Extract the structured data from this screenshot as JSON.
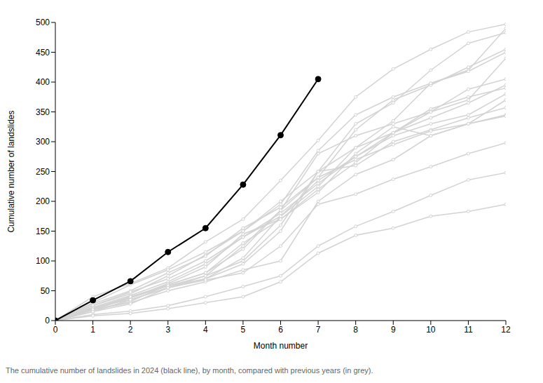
{
  "chart_data": {
    "type": "line",
    "caption": "The cumulative number of landslides in 2024 (black line), by month, compared with previous years (in grey).",
    "x_label": "Month number",
    "y_label": "Cumulative number of landslides",
    "x": [
      0,
      1,
      2,
      3,
      4,
      5,
      6,
      7,
      8,
      9,
      10,
      11,
      12
    ],
    "xlim": [
      0,
      12
    ],
    "xticks": [
      0,
      1,
      2,
      3,
      4,
      5,
      6,
      7,
      8,
      9,
      10,
      11,
      12
    ],
    "ylim": [
      0,
      500
    ],
    "yticks": [
      0,
      50,
      100,
      150,
      200,
      250,
      300,
      350,
      400,
      450,
      500
    ],
    "grid": false,
    "series": [
      {
        "color": "#d3d3d3",
        "marker": "hollow_circle",
        "values": [
          0,
          40,
          62,
          88,
          132,
          170,
          235,
          302,
          375,
          422,
          455,
          484,
          497
        ]
      },
      {
        "color": "#d3d3d3",
        "marker": "hollow_circle",
        "values": [
          0,
          30,
          60,
          85,
          115,
          150,
          195,
          285,
          345,
          375,
          398,
          420,
          490
        ]
      },
      {
        "color": "#d3d3d3",
        "marker": "hollow_circle",
        "values": [
          0,
          25,
          45,
          75,
          110,
          150,
          200,
          250,
          330,
          365,
          420,
          465,
          483
        ]
      },
      {
        "color": "#d3d3d3",
        "marker": "hollow_circle",
        "values": [
          0,
          28,
          50,
          80,
          108,
          155,
          190,
          240,
          320,
          370,
          395,
          425,
          455
        ]
      },
      {
        "color": "#d3d3d3",
        "marker": "hollow_circle",
        "values": [
          0,
          22,
          42,
          65,
          95,
          140,
          175,
          225,
          290,
          335,
          398,
          418,
          450
        ]
      },
      {
        "color": "#d3d3d3",
        "marker": "hollow_circle",
        "values": [
          0,
          20,
          40,
          60,
          80,
          120,
          185,
          280,
          310,
          330,
          350,
          370,
          440
        ]
      },
      {
        "color": "#d3d3d3",
        "marker": "hollow_circle",
        "values": [
          0,
          25,
          48,
          70,
          100,
          140,
          180,
          230,
          275,
          315,
          350,
          388,
          405
        ]
      },
      {
        "color": "#d3d3d3",
        "marker": "hollow_circle",
        "values": [
          0,
          18,
          38,
          62,
          90,
          145,
          170,
          220,
          265,
          315,
          340,
          365,
          395
        ]
      },
      {
        "color": "#d3d3d3",
        "marker": "hollow_circle",
        "values": [
          0,
          22,
          35,
          55,
          75,
          100,
          160,
          250,
          290,
          315,
          355,
          375,
          390
        ]
      },
      {
        "color": "#d3d3d3",
        "marker": "hollow_circle",
        "values": [
          0,
          20,
          38,
          58,
          70,
          105,
          175,
          235,
          275,
          310,
          330,
          345,
          380
        ]
      },
      {
        "color": "#d3d3d3",
        "marker": "hollow_circle",
        "values": [
          0,
          18,
          32,
          60,
          80,
          130,
          170,
          215,
          280,
          325,
          310,
          330,
          370
        ]
      },
      {
        "color": "#d3d3d3",
        "marker": "hollow_circle",
        "values": [
          0,
          15,
          35,
          55,
          70,
          95,
          150,
          250,
          260,
          300,
          320,
          340,
          357
        ]
      },
      {
        "color": "#d3d3d3",
        "marker": "hollow_circle",
        "values": [
          0,
          20,
          40,
          58,
          75,
          125,
          185,
          240,
          270,
          295,
          318,
          330,
          345
        ]
      },
      {
        "color": "#d3d3d3",
        "marker": "hollow_circle",
        "values": [
          0,
          18,
          30,
          50,
          65,
          85,
          100,
          200,
          245,
          270,
          310,
          330,
          343
        ]
      },
      {
        "color": "#d3d3d3",
        "marker": "hollow_circle",
        "values": [
          0,
          15,
          28,
          55,
          68,
          80,
          125,
          195,
          212,
          237,
          258,
          280,
          298
        ]
      },
      {
        "color": "#d3d3d3",
        "marker": "hollow_circle",
        "values": [
          0,
          10,
          16,
          25,
          40,
          57,
          75,
          125,
          158,
          183,
          210,
          236,
          248
        ]
      },
      {
        "color": "#d3d3d3",
        "marker": "hollow_circle",
        "values": [
          0,
          8,
          12,
          20,
          30,
          40,
          65,
          113,
          143,
          155,
          175,
          183,
          195
        ]
      },
      {
        "color": "#000000",
        "marker": "circle",
        "values": [
          0,
          34,
          66,
          115,
          155,
          228,
          311,
          405,
          null,
          null,
          null,
          null,
          null
        ]
      }
    ]
  }
}
